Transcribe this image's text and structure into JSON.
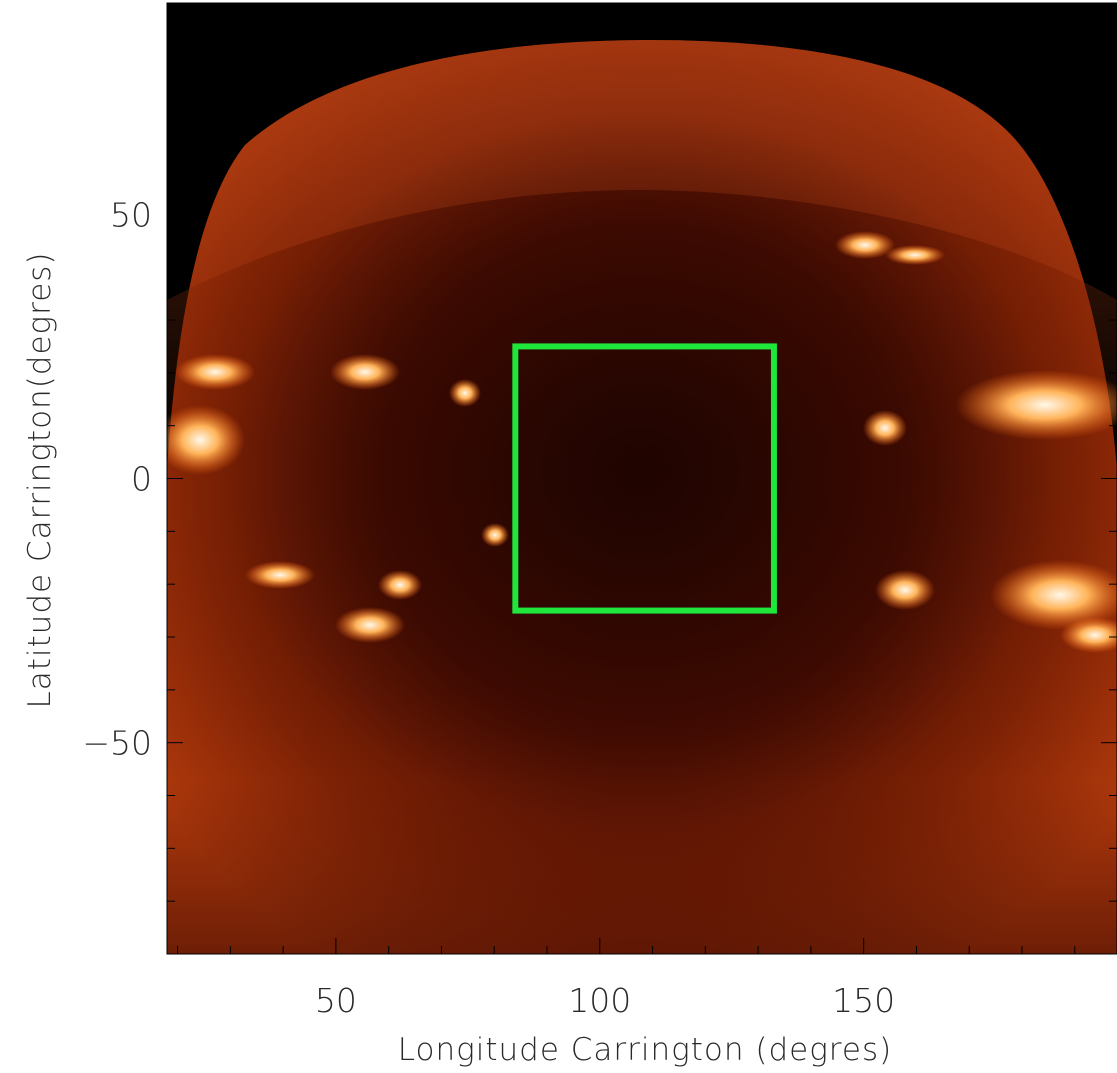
{
  "figure": {
    "xlabel": "Longitude Carrington (degres)",
    "ylabel": "Latitude Carrington(degres)",
    "xticks": [
      {
        "value": 50,
        "label": "50"
      },
      {
        "value": 100,
        "label": "100"
      },
      {
        "value": 150,
        "label": "150"
      }
    ],
    "yticks": [
      {
        "value": 50,
        "label": "50"
      },
      {
        "value": 0,
        "label": "0"
      },
      {
        "value": -50,
        "label": "−50"
      }
    ],
    "xlim": [
      18,
      198
    ],
    "ylim": [
      -90,
      90
    ],
    "roi_box": {
      "lon_min": 84,
      "lon_max": 133,
      "lat_min": -25,
      "lat_max": 25
    },
    "colors": {
      "roi_box": "#1ee63a",
      "background_sky": "#000000",
      "map_dark": "#2a0600",
      "map_mid": "#7a1c04",
      "map_bright": "#ff8a2a",
      "map_hot": "#fff6e0"
    }
  }
}
